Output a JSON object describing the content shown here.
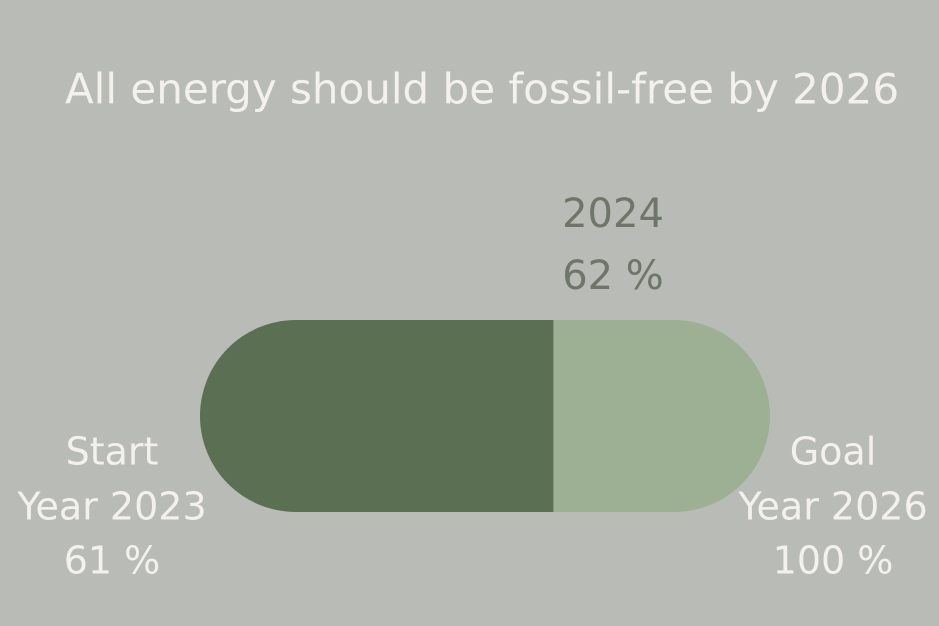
{
  "title": "All energy should be fossil-free by 2026",
  "start": {
    "label": "Start",
    "year": "Year 2023",
    "value_label": "61 %"
  },
  "current": {
    "year": "2024",
    "value": 62,
    "value_label": "62 %",
    "color": "#5b7053"
  },
  "goal": {
    "label": "Goal",
    "year": "Year 2026",
    "value": 100,
    "value_label": "100 %",
    "color": "#9db094"
  }
}
